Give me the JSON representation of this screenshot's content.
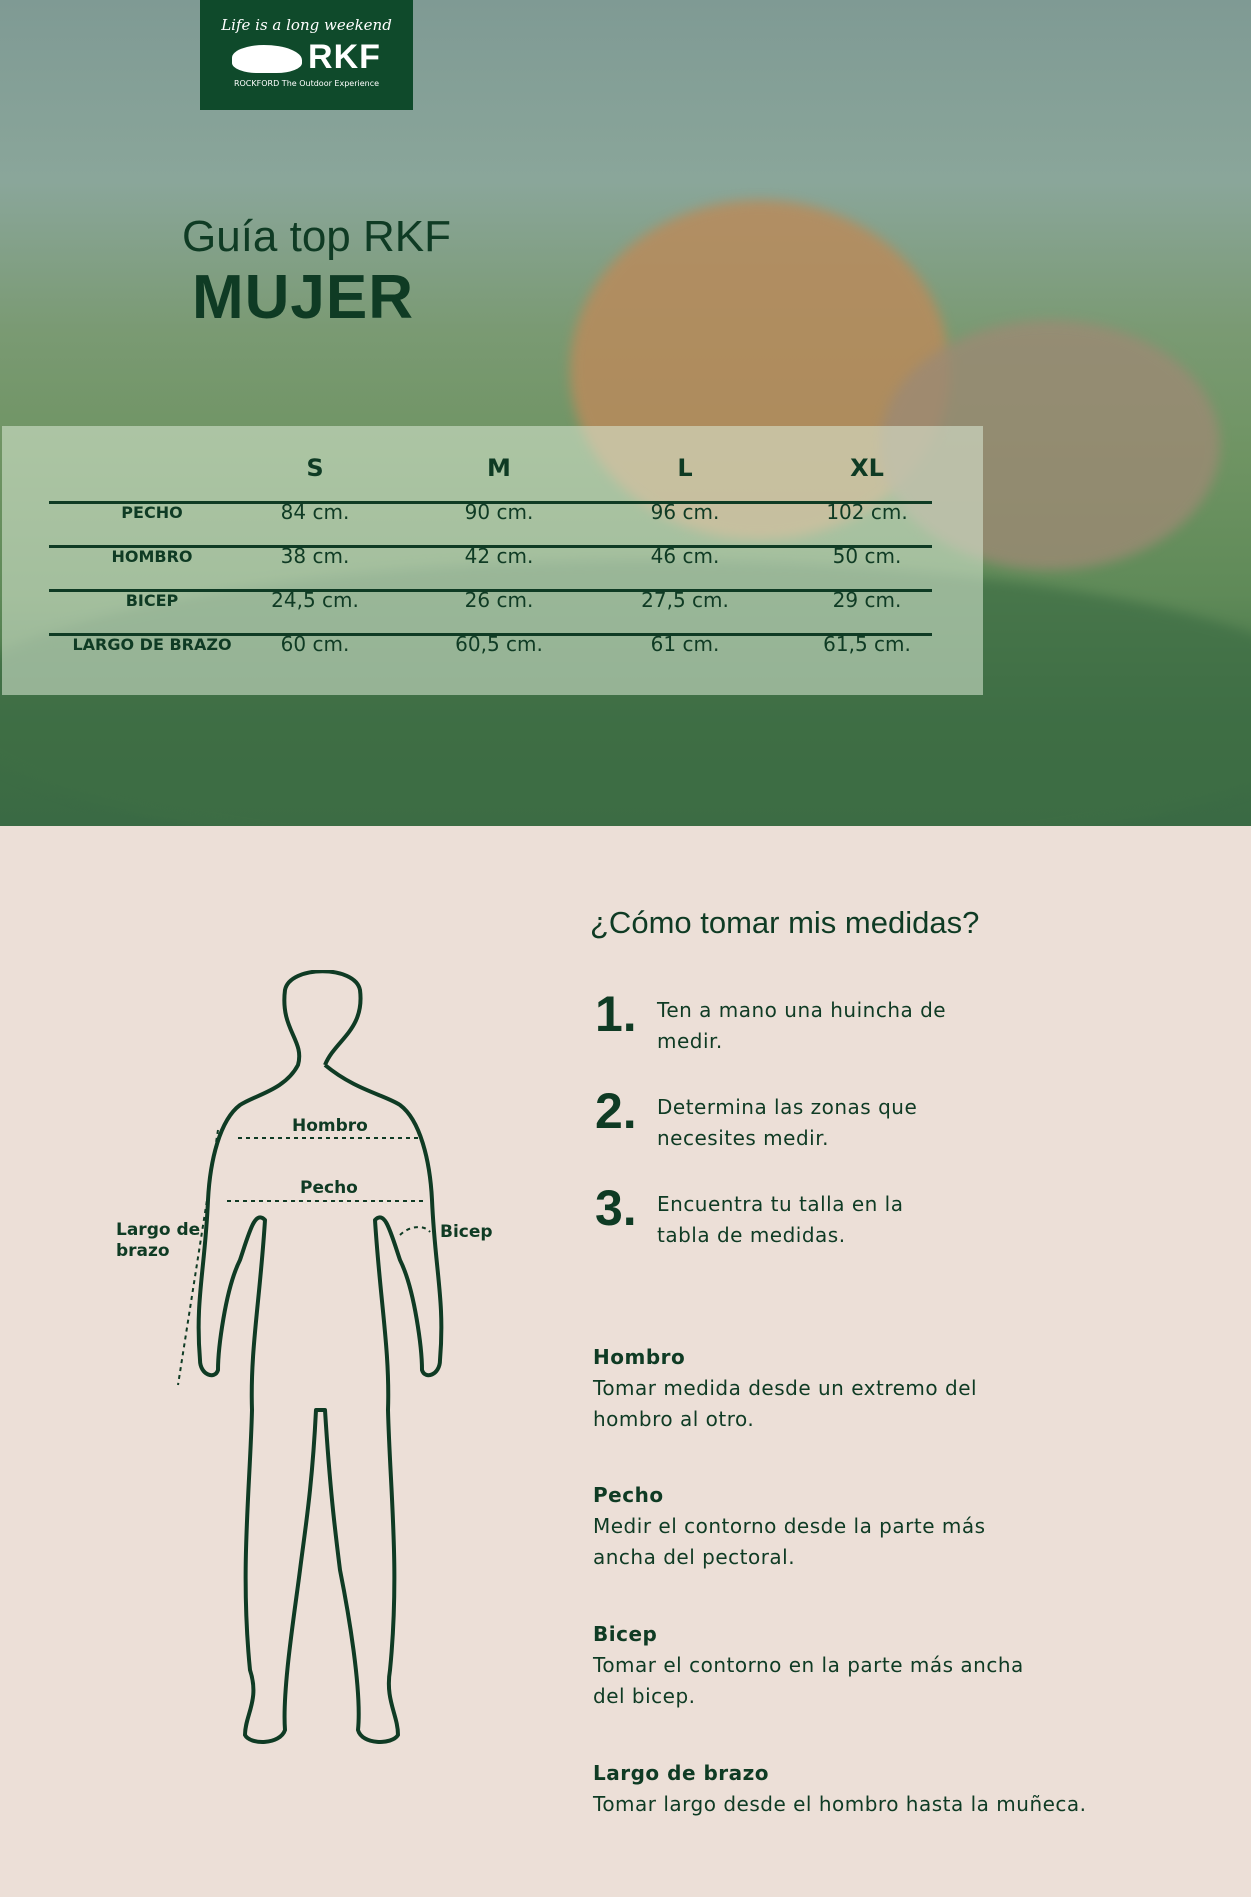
{
  "logo": {
    "tagline": "Life is a long weekend",
    "brand": "RKF",
    "subtitle": "ROCKFORD The Outdoor Experience"
  },
  "title": {
    "line1": "Guía top RKF",
    "line2": "MUJER"
  },
  "size_table": {
    "sizes": [
      "S",
      "M",
      "L",
      "XL"
    ],
    "rows": [
      {
        "label": "PECHO",
        "values": [
          "84 cm.",
          "90 cm.",
          "96 cm.",
          "102 cm."
        ]
      },
      {
        "label": "HOMBRO",
        "values": [
          "38 cm.",
          "42 cm.",
          "46 cm.",
          "50 cm."
        ]
      },
      {
        "label": "BICEP",
        "values": [
          "24,5 cm.",
          "26 cm.",
          "27,5 cm.",
          "29 cm."
        ]
      },
      {
        "label": "LARGO DE BRAZO",
        "values": [
          "60 cm.",
          "60,5 cm.",
          "61 cm.",
          "61,5 cm."
        ]
      }
    ]
  },
  "figure_labels": {
    "hombro": "Hombro",
    "pecho": "Pecho",
    "bicep": "Bicep",
    "largo1": "Largo de",
    "largo2": "brazo"
  },
  "howto": {
    "heading": "¿Cómo tomar mis medidas?",
    "steps": [
      {
        "n": "1.",
        "text": "Ten a mano una huincha de medir."
      },
      {
        "n": "2.",
        "text": "Determina las zonas que necesites medir."
      },
      {
        "n": "3.",
        "text": "Encuentra tu talla en la tabla de medidas."
      }
    ]
  },
  "descriptions": [
    {
      "title": "Hombro",
      "text": "Tomar medida desde un extremo del hombro al otro."
    },
    {
      "title": "Pecho",
      "text": "Medir el contorno desde la parte más ancha del pectoral."
    },
    {
      "title": "Bicep",
      "text": "Tomar el contorno en la parte más ancha del bicep."
    },
    {
      "title": "Largo de brazo",
      "text": "Tomar largo desde el hombro hasta la muñeca."
    }
  ],
  "colors": {
    "brand_green": "#0f4a2b",
    "text_green": "#0f3b24",
    "background": "#ecdfd7"
  }
}
